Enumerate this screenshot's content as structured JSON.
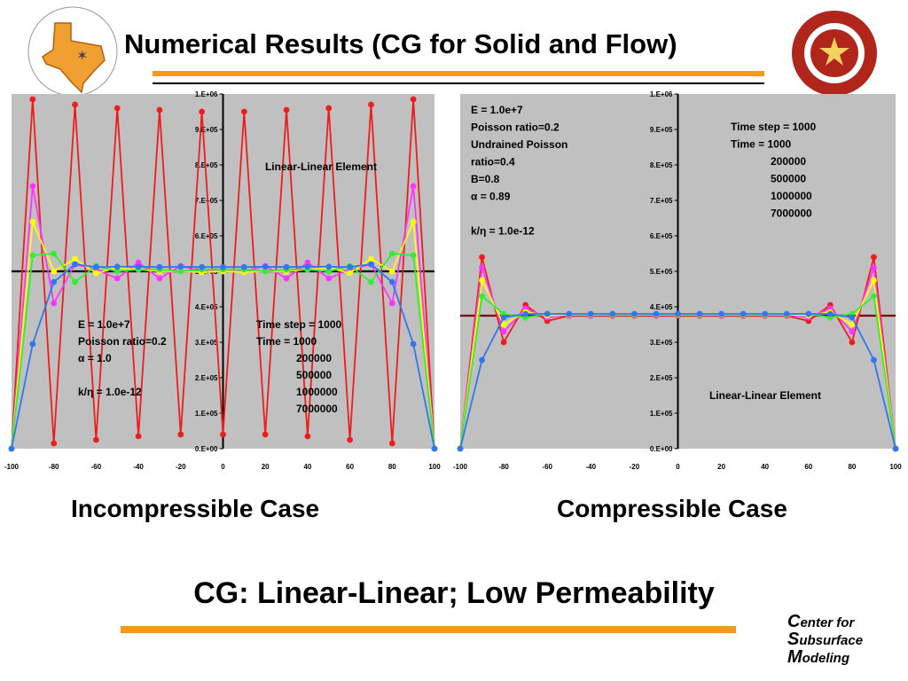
{
  "slide": {
    "title": "Numerical Results (CG for Solid and Flow)",
    "bottom_title": "CG: Linear-Linear; Low Permeability",
    "caption_left": "Incompressible Case",
    "caption_right": "Compressible Case",
    "footer_lines": [
      "Center for",
      "Subsurface",
      "Modeling"
    ],
    "logo_left_text": "THE CENTER FOR SUBSURFACE MODELING · AUSTIN",
    "logo_right_text": "THE UNIVERSITY OF TEXAS · PRAESIDIUM · DISCIPLINA · CIVITATIS",
    "colors": {
      "accent": "#f39a1b",
      "plot_bg": "#c0c0c0"
    }
  },
  "chart_data": [
    {
      "type": "line",
      "title": "",
      "xlim": [
        -100,
        100
      ],
      "ylim": [
        0,
        1000000
      ],
      "x_ticks": [
        "-100",
        "-80",
        "-60",
        "-40",
        "-20",
        "0",
        "20",
        "40",
        "60",
        "80",
        "100"
      ],
      "y_ticks": [
        "0.E+00",
        "1.E+05",
        "2.E+05",
        "3.E+05",
        "4.E+05",
        "5.E+05",
        "6.E+05",
        "7.E+05",
        "8.E+05",
        "9.E+05",
        "1.E+06"
      ],
      "grid": false,
      "annotations": {
        "element": "Linear-Linear Element",
        "params": [
          "E = 1.0e+7",
          "Poisson ratio=0.2",
          "α = 1.0",
          "",
          "k/η = 1.0e-12"
        ],
        "times_header": [
          "Time step = 1000",
          "Time =  1000"
        ],
        "times": [
          "200000",
          "500000",
          "1000000",
          "7000000"
        ]
      },
      "reference_line": {
        "y": 500000,
        "color": "#000000"
      },
      "x": [
        -100,
        -90,
        -80,
        -70,
        -60,
        -50,
        -40,
        -30,
        -20,
        -10,
        0,
        10,
        20,
        30,
        40,
        50,
        60,
        70,
        80,
        90,
        100
      ],
      "series": [
        {
          "color": "#ee1c1c",
          "values": [
            0,
            985000,
            15000,
            970000,
            25000,
            960000,
            35000,
            955000,
            40000,
            950000,
            40000,
            950000,
            40000,
            955000,
            35000,
            960000,
            25000,
            970000,
            15000,
            985000,
            0
          ]
        },
        {
          "color": "#ff33ff",
          "values": [
            0,
            740000,
            410000,
            520000,
            505000,
            480000,
            525000,
            480000,
            515000,
            500000,
            505000,
            500000,
            515000,
            480000,
            525000,
            480000,
            505000,
            520000,
            410000,
            740000,
            0
          ]
        },
        {
          "color": "#ffff00",
          "values": [
            0,
            640000,
            500000,
            535000,
            495000,
            510000,
            505000,
            500000,
            500000,
            498000,
            500000,
            498000,
            500000,
            500000,
            505000,
            510000,
            495000,
            535000,
            500000,
            640000,
            0
          ]
        },
        {
          "color": "#33ee33",
          "values": [
            0,
            545000,
            550000,
            470000,
            515000,
            500000,
            505000,
            505000,
            500000,
            505000,
            505000,
            505000,
            500000,
            505000,
            505000,
            500000,
            515000,
            470000,
            550000,
            545000,
            0
          ]
        },
        {
          "color": "#3377ee",
          "values": [
            0,
            295000,
            470000,
            520000,
            512000,
            513000,
            513000,
            512000,
            513000,
            512000,
            512000,
            512000,
            513000,
            512000,
            513000,
            513000,
            512000,
            520000,
            470000,
            295000,
            0
          ]
        }
      ]
    },
    {
      "type": "line",
      "title": "",
      "xlim": [
        -100,
        100
      ],
      "ylim": [
        0,
        1000000
      ],
      "x_ticks": [
        "-100",
        "-80",
        "-60",
        "-40",
        "-20",
        "0",
        "20",
        "40",
        "60",
        "80",
        "100"
      ],
      "y_ticks": [
        "0.E+00",
        "1.E+05",
        "2.E+05",
        "3.E+05",
        "4.E+05",
        "5.E+05",
        "6.E+05",
        "7.E+05",
        "8.E+05",
        "9.E+05",
        "1.E+06"
      ],
      "grid": false,
      "annotations": {
        "element": "Linear-Linear Element",
        "params": [
          "E = 1.0e+7",
          "Poisson ratio=0.2",
          "Undrained Poisson",
          "ratio=0.4",
          "B=0.8",
          "α = 0.89",
          "",
          "k/η = 1.0e-12"
        ],
        "times_header": [
          "Time step = 1000",
          "Time =  1000"
        ],
        "times": [
          "200000",
          "500000",
          "1000000",
          "7000000"
        ]
      },
      "reference_line": {
        "y": 375000,
        "color": "#7a0000"
      },
      "x": [
        -100,
        -90,
        -80,
        -70,
        -60,
        -50,
        -40,
        -30,
        -20,
        -10,
        0,
        10,
        20,
        30,
        40,
        50,
        60,
        70,
        80,
        90,
        100
      ],
      "series": [
        {
          "color": "#ee1c1c",
          "values": [
            0,
            540000,
            300000,
            405000,
            360000,
            375000,
            375000,
            375000,
            375000,
            375000,
            375000,
            375000,
            375000,
            375000,
            375000,
            375000,
            360000,
            405000,
            300000,
            540000,
            0
          ]
        },
        {
          "color": "#ff33ff",
          "values": [
            0,
            510000,
            330000,
            395000,
            370000,
            377000,
            377000,
            377000,
            377000,
            377000,
            377000,
            377000,
            377000,
            377000,
            377000,
            377000,
            370000,
            395000,
            330000,
            510000,
            0
          ]
        },
        {
          "color": "#ffff00",
          "values": [
            0,
            475000,
            350000,
            385000,
            375000,
            378000,
            378000,
            378000,
            378000,
            378000,
            378000,
            378000,
            378000,
            378000,
            378000,
            378000,
            375000,
            385000,
            350000,
            475000,
            0
          ]
        },
        {
          "color": "#33ee33",
          "values": [
            0,
            430000,
            380000,
            370000,
            380000,
            379000,
            379000,
            379000,
            379000,
            379000,
            379000,
            379000,
            379000,
            379000,
            379000,
            379000,
            380000,
            370000,
            380000,
            430000,
            0
          ]
        },
        {
          "color": "#3377ee",
          "values": [
            0,
            250000,
            370000,
            380000,
            380000,
            380000,
            380000,
            380000,
            380000,
            380000,
            380000,
            380000,
            380000,
            380000,
            380000,
            380000,
            380000,
            380000,
            370000,
            250000,
            0
          ]
        }
      ]
    }
  ]
}
